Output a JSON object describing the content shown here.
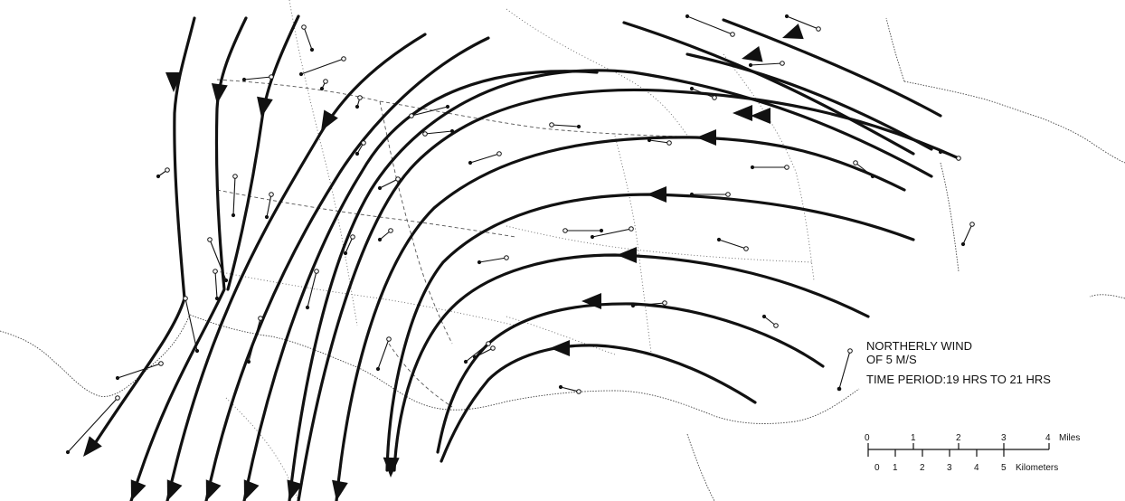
{
  "legend": {
    "line1": "NORTHERLY WIND",
    "line2": "OF 5 M/S",
    "line3": "TIME PERIOD:19 HRS TO 21 HRS"
  },
  "scale_bar": {
    "miles_ticks": [
      "0",
      "1",
      "2",
      "3",
      "4"
    ],
    "miles_unit": "Miles",
    "km_ticks": [
      "0",
      "1",
      "2",
      "3",
      "4",
      "5"
    ],
    "km_unit": "Kilometers"
  }
}
